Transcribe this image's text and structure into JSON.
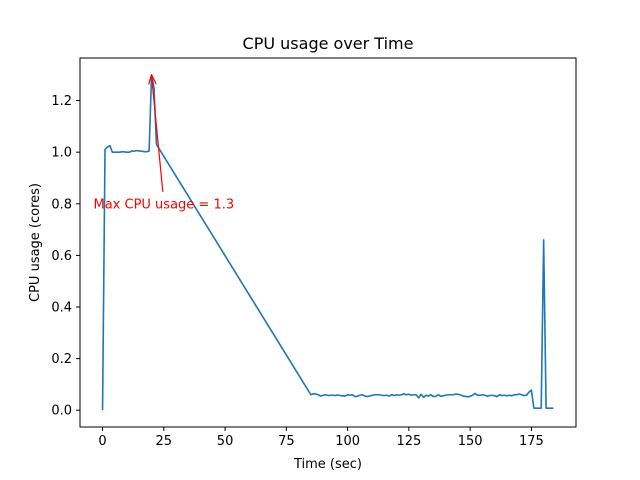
{
  "chart_data": {
    "type": "line",
    "title": "CPU usage over Time",
    "xlabel": "Time (sec)",
    "ylabel": "CPU usage (cores)",
    "xlim": [
      -9.2,
      193.2
    ],
    "ylim": [
      -0.065,
      1.365
    ],
    "xticks": [
      0,
      25,
      50,
      75,
      100,
      125,
      150,
      175
    ],
    "yticks": [
      0.0,
      0.2,
      0.4,
      0.6,
      0.8,
      1.0,
      1.2
    ],
    "xtick_labels": [
      "0",
      "25",
      "50",
      "75",
      "100",
      "125",
      "150",
      "175"
    ],
    "ytick_labels": [
      "0.0",
      "0.2",
      "0.4",
      "0.6",
      "0.8",
      "1.0",
      "1.2"
    ],
    "grid": false,
    "line_color": "#1f77b4",
    "annotation": {
      "text": "Max CPU usage = 1.3",
      "xy": [
        20,
        1.3
      ],
      "xytext": [
        25,
        0.8
      ],
      "color": "#ff0000"
    },
    "series": [
      {
        "x": [
          0,
          1,
          2,
          3,
          4,
          5,
          6,
          7,
          8,
          9,
          10,
          11,
          12,
          13,
          14,
          15,
          16,
          17,
          18,
          19,
          20,
          21,
          22,
          85,
          86,
          87,
          88,
          89,
          90,
          91,
          92,
          93,
          94,
          95,
          96,
          97,
          98,
          99,
          100,
          101,
          102,
          103,
          104,
          105,
          106,
          107,
          108,
          109,
          110,
          111,
          112,
          113,
          114,
          115,
          116,
          117,
          118,
          119,
          120,
          121,
          122,
          123,
          124,
          125,
          126,
          127,
          128,
          129,
          130,
          131,
          132,
          133,
          134,
          135,
          136,
          137,
          138,
          139,
          140,
          141,
          142,
          143,
          144,
          145,
          146,
          147,
          148,
          149,
          150,
          151,
          152,
          153,
          154,
          155,
          156,
          157,
          158,
          159,
          160,
          161,
          162,
          163,
          164,
          165,
          166,
          167,
          168,
          169,
          170,
          171,
          172,
          173,
          174,
          175,
          176,
          177,
          178,
          179,
          180,
          181,
          182,
          183,
          184
        ],
        "y": [
          0.0,
          1.01,
          1.02,
          1.025,
          1.0,
          1.0,
          1.0,
          1.0,
          1.002,
          1.001,
          1.0,
          1.0,
          1.005,
          1.004,
          1.006,
          1.005,
          1.004,
          1.002,
          1.002,
          1.004,
          1.3,
          1.25,
          1.03,
          0.06,
          0.064,
          0.063,
          0.06,
          0.055,
          0.058,
          0.06,
          0.057,
          0.058,
          0.058,
          0.057,
          0.059,
          0.057,
          0.056,
          0.055,
          0.06,
          0.058,
          0.06,
          0.053,
          0.054,
          0.058,
          0.06,
          0.055,
          0.053,
          0.055,
          0.058,
          0.06,
          0.06,
          0.06,
          0.058,
          0.057,
          0.058,
          0.055,
          0.06,
          0.057,
          0.06,
          0.058,
          0.06,
          0.064,
          0.06,
          0.062,
          0.058,
          0.06,
          0.06,
          0.048,
          0.062,
          0.05,
          0.058,
          0.055,
          0.06,
          0.053,
          0.054,
          0.06,
          0.054,
          0.056,
          0.058,
          0.06,
          0.06,
          0.06,
          0.062,
          0.062,
          0.06,
          0.055,
          0.054,
          0.052,
          0.054,
          0.058,
          0.065,
          0.058,
          0.058,
          0.06,
          0.058,
          0.054,
          0.057,
          0.058,
          0.056,
          0.053,
          0.06,
          0.057,
          0.058,
          0.056,
          0.058,
          0.056,
          0.06,
          0.06,
          0.063,
          0.06,
          0.057,
          0.058,
          0.07,
          0.078,
          0.008,
          0.008,
          0.008,
          0.008,
          0.66,
          0.008,
          0.008,
          0.008,
          0.008
        ]
      }
    ]
  }
}
